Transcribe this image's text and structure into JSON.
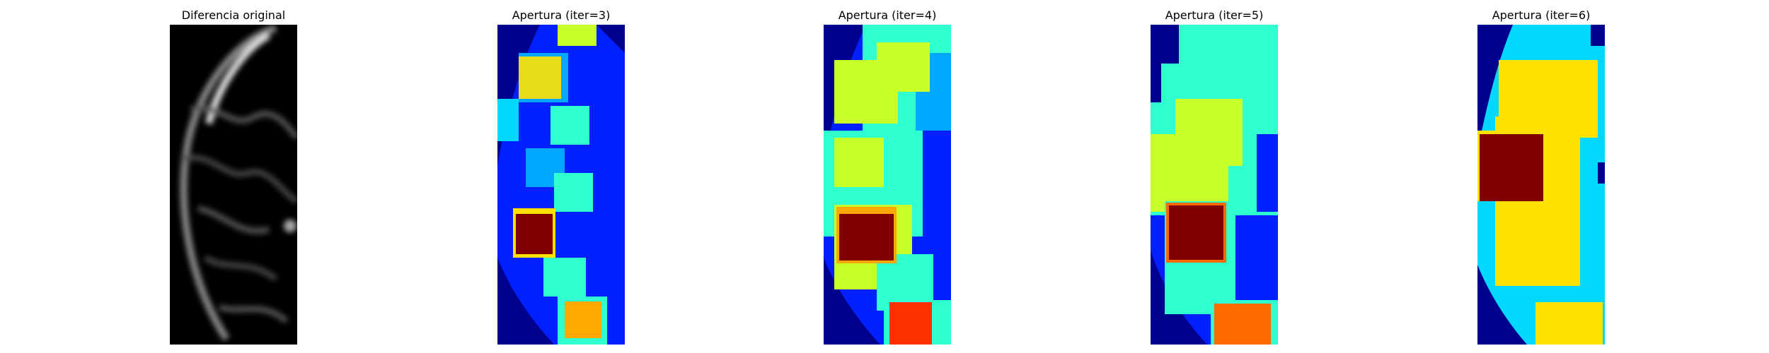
{
  "panels": [
    {
      "title": "Diferencia original"
    },
    {
      "title": "Apertura (iter=3)"
    },
    {
      "title": "Apertura (iter=4)"
    },
    {
      "title": "Apertura (iter=5)"
    },
    {
      "title": "Apertura (iter=6)"
    }
  ],
  "colors": {
    "background": "#ffffff",
    "jet_dark_blue": "#00008f",
    "jet_blue": "#0020ff",
    "jet_mid_blue": "#0060ff",
    "jet_light_blue": "#00a8ff",
    "jet_cyan": "#00d8ff",
    "jet_aqua": "#30ffd0",
    "jet_lime": "#c8ff28",
    "jet_yellow": "#ffe100",
    "jet_orange": "#ff6a00",
    "jet_red": "#ff3000",
    "jet_dark_red": "#800000"
  }
}
